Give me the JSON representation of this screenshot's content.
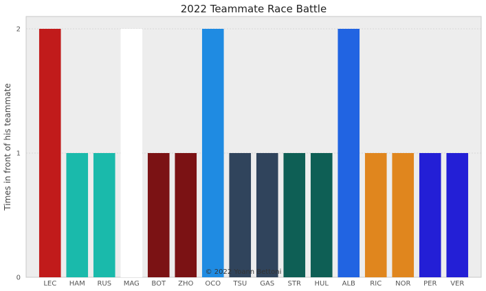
{
  "chart_data": {
    "type": "bar",
    "title": "2022 Teammate Race Battle",
    "xlabel": "",
    "ylabel": "Times in front of his teammate",
    "ylim": [
      0,
      2
    ],
    "yticks": [
      0,
      1,
      2
    ],
    "grid": true,
    "background": "#ededed",
    "categories": [
      "LEC",
      "HAM",
      "RUS",
      "MAG",
      "BOT",
      "ZHO",
      "OCO",
      "TSU",
      "GAS",
      "STR",
      "HUL",
      "ALB",
      "RIC",
      "NOR",
      "PER",
      "VER"
    ],
    "values": [
      2,
      1,
      1,
      2,
      1,
      1,
      2,
      1,
      1,
      1,
      1,
      2,
      1,
      1,
      1,
      1
    ],
    "colors": [
      "#c11b1b",
      "#1abaab",
      "#1abaab",
      "#ffffff",
      "#7b1214",
      "#7b1214",
      "#1f8be2",
      "#30445c",
      "#30445c",
      "#0e5f55",
      "#0e5f55",
      "#2164e2",
      "#e0861e",
      "#e0861e",
      "#231fd6",
      "#231fd6"
    ],
    "annotation": "© 2022 Yoann Bettoni"
  }
}
